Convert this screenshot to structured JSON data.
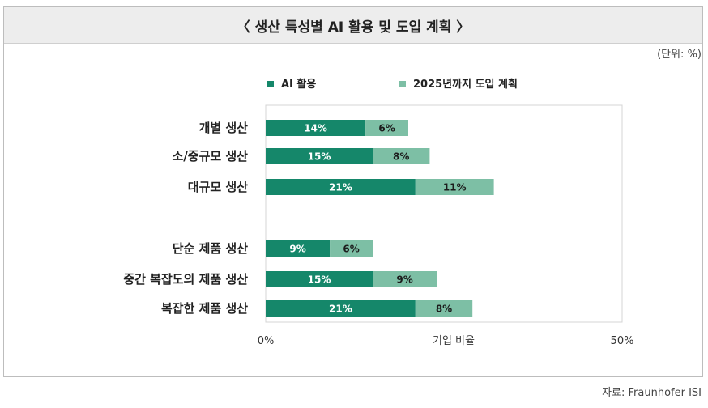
{
  "title": "〈 생산 특성별 AI 활용 및 도입 계획 〉",
  "unit": "(단위: %)",
  "source": "자료: Fraunhofer ISI",
  "colors": {
    "primary": "#15876a",
    "secondary": "#7dbfa5",
    "frame": "#bdbdbd",
    "title_bg": "#ededed"
  },
  "chart_data": {
    "type": "bar",
    "orientation": "horizontal",
    "stacked": true,
    "title": "〈 생산 특성별 AI 활용 및 도입 계획 〉",
    "xlabel": "기업 비율",
    "ylabel": "",
    "xlim": [
      0,
      50
    ],
    "x_ticks": [
      "0%",
      "50%"
    ],
    "legend_position": "top",
    "categories": [
      "개별 생산",
      "소/중규모 생산",
      "대규모 생산",
      "단순 제품  생산",
      "중간 복잡도의 제품 생산",
      "복잡한 제품 생산"
    ],
    "series": [
      {
        "name": "AI 활용",
        "values": [
          14,
          15,
          21,
          9,
          15,
          21
        ],
        "labels": [
          "14%",
          "15%",
          "21%",
          "9%",
          "15%",
          "21%"
        ],
        "color": "#15876a"
      },
      {
        "name": "2025년까지 도입 계획",
        "values": [
          6,
          8,
          11,
          6,
          9,
          8
        ],
        "labels": [
          "6%",
          "8%",
          "11%",
          "6%",
          "9%",
          "8%"
        ],
        "color": "#7dbfa5"
      }
    ]
  }
}
